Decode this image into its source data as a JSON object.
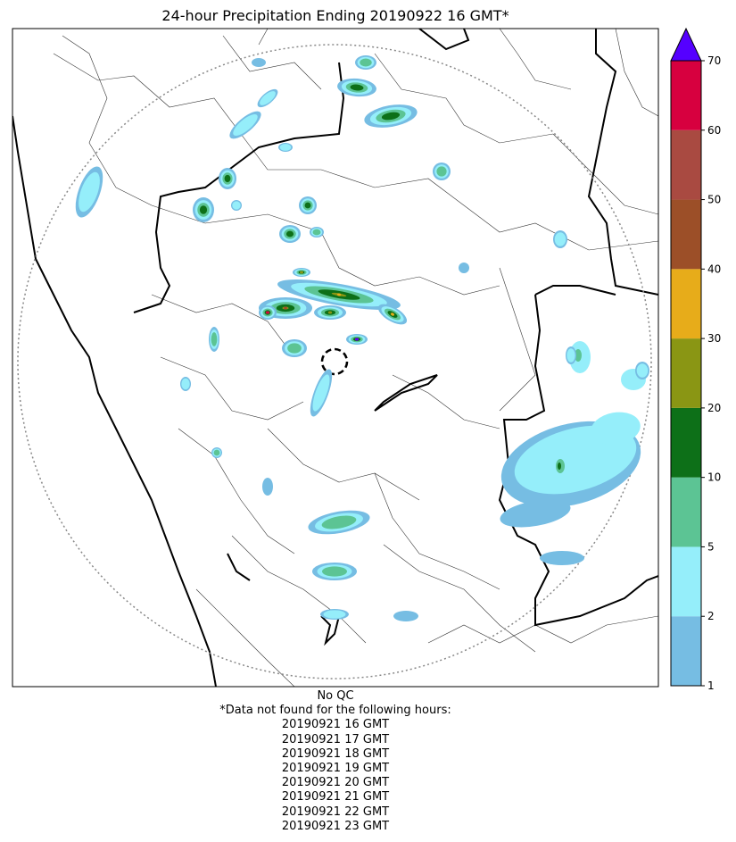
{
  "title": "24-hour Precipitation Ending 20190922 16 GMT*",
  "qc_note": "No QC",
  "missing_header": "*Data not found for the following hours:",
  "missing_hours": [
    "20190921 16 GMT",
    "20190921 17 GMT",
    "20190921 18 GMT",
    "20190921 19 GMT",
    "20190921 20 GMT",
    "20190921 21 GMT",
    "20190921 22 GMT",
    "20190921 23 GMT"
  ],
  "colorbar": {
    "ticks": [
      "1",
      "2",
      "5",
      "10",
      "20",
      "30",
      "40",
      "50",
      "60",
      "70"
    ],
    "colors": [
      "#76bde3",
      "#95eefa",
      "#5cc494",
      "#0d7018",
      "#8a9614",
      "#e7ac1a",
      "#9c4f28",
      "#a94a41",
      "#d7003f"
    ],
    "extend_color": "#5500ff"
  },
  "legend_colors": {
    "band_1_2": "#76bde3",
    "band_2_5": "#95eefa",
    "band_5_10": "#5cc494",
    "band_10_20": "#0d7018",
    "band_20_30": "#8a9614",
    "band_30_40": "#e7ac1a",
    "band_40_50": "#9c4f28",
    "band_50_60": "#a94a41",
    "band_60_70": "#d7003f",
    "above_70": "#5500ff"
  }
}
